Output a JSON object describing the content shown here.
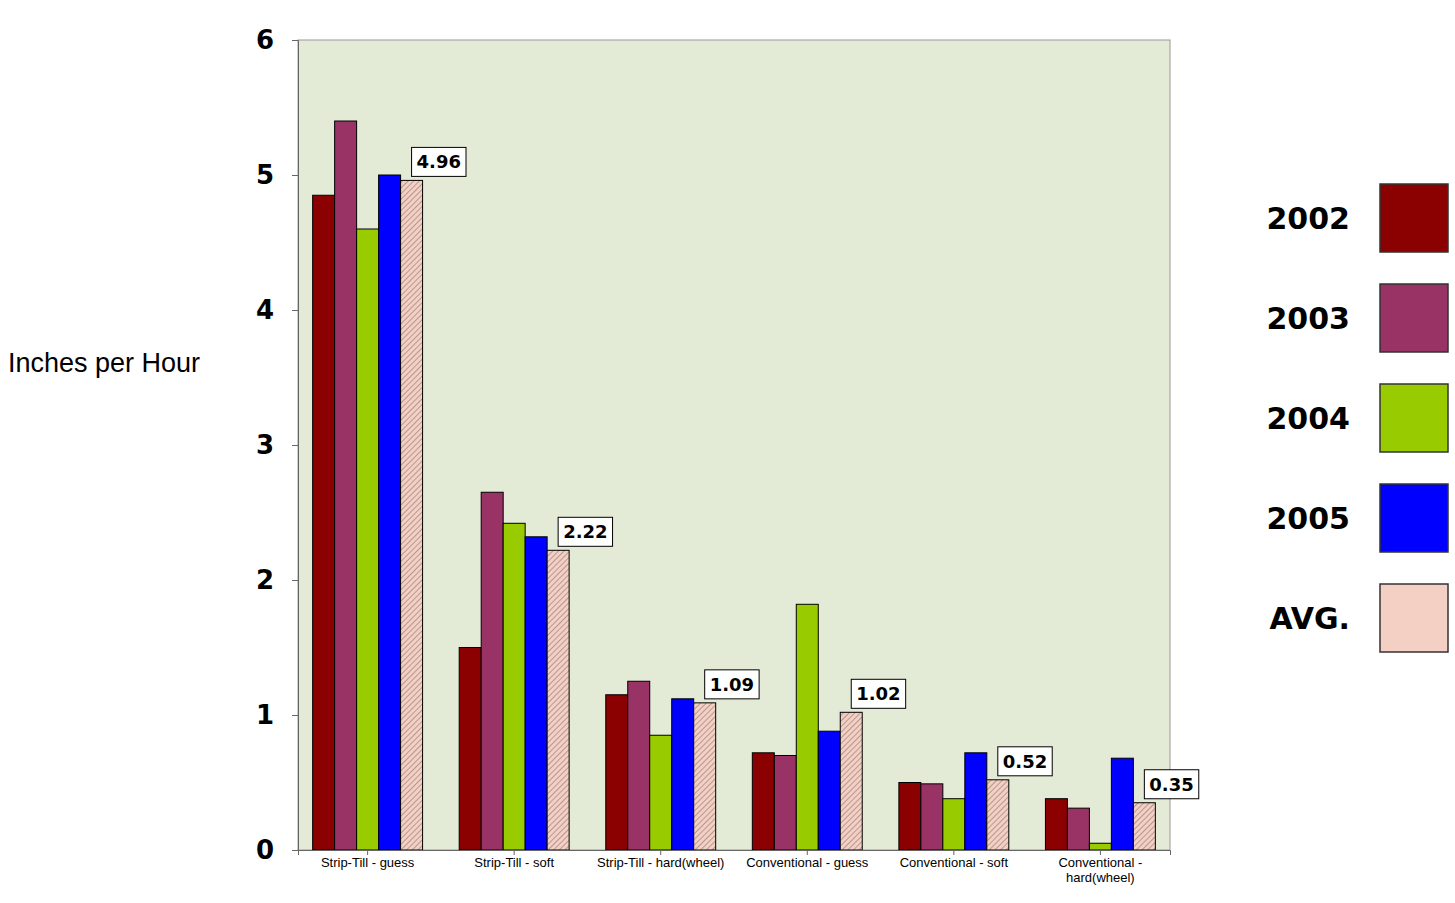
{
  "chart_data": {
    "type": "bar",
    "y_label": "Inches per Hour",
    "categories": [
      "Strip-Till - guess",
      "Strip-Till - soft",
      "Strip-Till - hard(wheel)",
      "Conventional - guess",
      "Conventional - soft",
      "Conventional - hard(wheel)"
    ],
    "series": [
      {
        "name": "2002",
        "color": "#8b0000",
        "values": [
          4.85,
          1.5,
          1.15,
          0.72,
          0.5,
          0.38
        ]
      },
      {
        "name": "2003",
        "color": "#993366",
        "values": [
          5.4,
          2.65,
          1.25,
          0.7,
          0.49,
          0.31
        ]
      },
      {
        "name": "2004",
        "color": "#99cc00",
        "values": [
          4.6,
          2.42,
          0.85,
          1.82,
          0.38,
          0.05
        ]
      },
      {
        "name": "2005",
        "color": "#0000ff",
        "values": [
          5.0,
          2.32,
          1.12,
          0.88,
          0.72,
          0.68
        ]
      },
      {
        "name": "AVG.",
        "color": "#f4cfc4",
        "values": [
          4.96,
          2.22,
          1.09,
          1.02,
          0.52,
          0.35
        ],
        "data_labels": true
      }
    ],
    "ylim": [
      0,
      6
    ],
    "yticks": [
      0,
      1,
      2,
      3,
      4,
      5,
      6
    ],
    "legend": "right"
  }
}
